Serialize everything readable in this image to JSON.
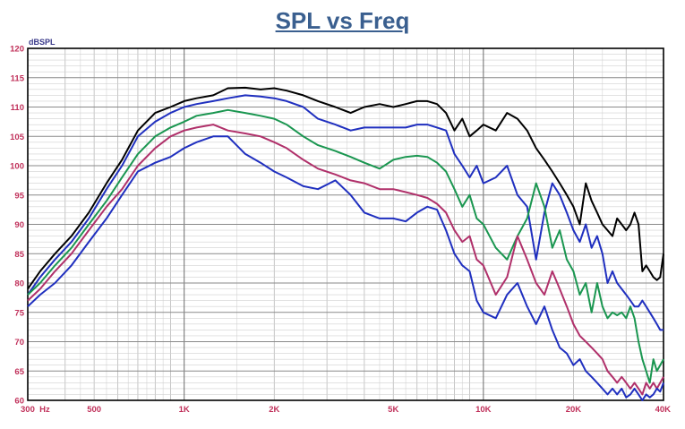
{
  "chart_data": {
    "type": "line",
    "title": "SPL vs Freq",
    "ylabel": "dBSPL",
    "xlabel": "",
    "xscale": "log",
    "xlim": [
      300,
      40000
    ],
    "ylim": [
      60,
      120
    ],
    "grid": true,
    "legend": "none",
    "yticks": [
      60,
      65,
      70,
      75,
      80,
      85,
      90,
      95,
      100,
      105,
      110,
      115,
      120
    ],
    "xticks": [
      {
        "value": 300,
        "label": "300  Hz"
      },
      {
        "value": 500,
        "label": "500"
      },
      {
        "value": 1000,
        "label": "1K"
      },
      {
        "value": 2000,
        "label": "2K"
      },
      {
        "value": 5000,
        "label": "5K"
      },
      {
        "value": 10000,
        "label": "10K"
      },
      {
        "value": 20000,
        "label": "20K"
      },
      {
        "value": 40000,
        "label": "40K"
      }
    ],
    "series": [
      {
        "color": "#000000",
        "x": [
          300,
          330,
          370,
          420,
          480,
          550,
          620,
          700,
          800,
          900,
          1000,
          1100,
          1250,
          1400,
          1600,
          1800,
          2000,
          2200,
          2500,
          2800,
          3200,
          3600,
          4000,
          4500,
          5000,
          5500,
          6000,
          6500,
          7000,
          7500,
          8000,
          8500,
          9000,
          9500,
          10000,
          11000,
          12000,
          13000,
          14000,
          15000,
          16000,
          17000,
          18000,
          19000,
          20000,
          21000,
          22000,
          23000,
          24000,
          25000,
          26000,
          27000,
          28000,
          29000,
          30000,
          31000,
          32000,
          33000,
          34000,
          35000,
          36000,
          37000,
          38000,
          39000,
          40000
        ],
        "y": [
          79,
          82,
          85,
          88,
          92,
          97,
          101,
          106,
          109,
          110,
          111,
          111.5,
          112,
          113.2,
          113.3,
          113,
          113.2,
          112.8,
          112,
          111,
          110,
          109,
          110,
          110.5,
          110,
          110.5,
          111,
          111,
          110.5,
          109,
          106,
          108,
          105,
          106,
          107,
          106,
          109,
          108,
          106,
          103,
          101,
          99,
          97,
          95,
          93,
          90,
          97,
          94,
          92,
          90,
          89,
          88,
          91,
          90,
          89,
          90,
          92,
          90,
          82,
          83,
          82,
          81,
          80.5,
          81,
          85
        ]
      },
      {
        "color": "#1f2fbf",
        "x": [
          300,
          330,
          370,
          420,
          480,
          550,
          620,
          700,
          800,
          900,
          1000,
          1100,
          1250,
          1400,
          1600,
          1800,
          2000,
          2200,
          2500,
          2800,
          3200,
          3600,
          4000,
          4500,
          5000,
          5500,
          6000,
          6500,
          7000,
          7500,
          8000,
          8500,
          9000,
          9500,
          10000,
          11000,
          12000,
          13000,
          14000,
          15000,
          16000,
          17000,
          18000,
          19000,
          20000,
          21000,
          22000,
          23000,
          24000,
          25000,
          26000,
          27000,
          28000,
          29000,
          30000,
          31000,
          32000,
          33000,
          34000,
          35000,
          36000,
          37000,
          38000,
          39000,
          40000
        ],
        "y": [
          78,
          81,
          84,
          87,
          91,
          96,
          100,
          105,
          107.5,
          109,
          110,
          110.5,
          111,
          111.5,
          112,
          111.8,
          111.5,
          111,
          110,
          108,
          107,
          106,
          106.5,
          106.5,
          106.5,
          106.5,
          107,
          107,
          106.5,
          106,
          102,
          100,
          98,
          100,
          97,
          98,
          100,
          95,
          93,
          84,
          92,
          97,
          95,
          92,
          89,
          87,
          90,
          86,
          88,
          85,
          80,
          82,
          80,
          79,
          78,
          77,
          76,
          76,
          77,
          76,
          75,
          74,
          73,
          72,
          72
        ]
      },
      {
        "color": "#1a9650",
        "x": [
          300,
          330,
          370,
          420,
          480,
          550,
          620,
          700,
          800,
          900,
          1000,
          1100,
          1250,
          1400,
          1600,
          1800,
          2000,
          2200,
          2500,
          2800,
          3200,
          3600,
          4000,
          4500,
          5000,
          5500,
          6000,
          6500,
          7000,
          7500,
          8000,
          8500,
          9000,
          9500,
          10000,
          11000,
          12000,
          13000,
          14000,
          15000,
          16000,
          17000,
          18000,
          19000,
          20000,
          21000,
          22000,
          23000,
          24000,
          25000,
          26000,
          27000,
          28000,
          29000,
          30000,
          31000,
          32000,
          33000,
          34000,
          35000,
          36000,
          37000,
          38000,
          39000,
          40000
        ],
        "y": [
          78,
          80,
          83,
          86,
          90,
          94,
          98,
          102,
          105,
          106.5,
          107.5,
          108.5,
          109,
          109.5,
          109,
          108.5,
          108,
          107,
          105,
          103.5,
          102.5,
          101.5,
          100.5,
          99.5,
          101,
          101.5,
          101.7,
          101.5,
          100.5,
          99,
          96,
          93,
          95,
          91,
          90,
          86,
          84,
          88,
          91,
          97,
          93,
          86,
          89,
          84,
          82,
          78,
          80,
          75,
          80,
          76,
          74,
          75,
          74.5,
          75,
          74,
          76,
          74,
          70,
          67,
          65,
          63,
          67,
          65,
          66,
          67
        ]
      },
      {
        "color": "#b0306a",
        "x": [
          300,
          330,
          370,
          420,
          480,
          550,
          620,
          700,
          800,
          900,
          1000,
          1100,
          1250,
          1400,
          1600,
          1800,
          2000,
          2200,
          2500,
          2800,
          3200,
          3600,
          4000,
          4500,
          5000,
          5500,
          6000,
          6500,
          7000,
          7500,
          8000,
          8500,
          9000,
          9500,
          10000,
          11000,
          12000,
          13000,
          14000,
          15000,
          16000,
          17000,
          18000,
          19000,
          20000,
          21000,
          22000,
          23000,
          24000,
          25000,
          26000,
          27000,
          28000,
          29000,
          30000,
          31000,
          32000,
          33000,
          34000,
          35000,
          36000,
          37000,
          38000,
          39000,
          40000
        ],
        "y": [
          77,
          79,
          82,
          85,
          89,
          93,
          96,
          100,
          103,
          105,
          106,
          106.5,
          107,
          106,
          105.5,
          105,
          104,
          103,
          101,
          99.5,
          98.5,
          97.5,
          97,
          96,
          96,
          95.5,
          95,
          94.5,
          93.5,
          92,
          89,
          87,
          88,
          84,
          83,
          78,
          81,
          88,
          84,
          80,
          78,
          82,
          79,
          76,
          73,
          71,
          70,
          69,
          68,
          67,
          65,
          64,
          63,
          64,
          63,
          62,
          63,
          62,
          61,
          63,
          62,
          63,
          62,
          63,
          64
        ]
      },
      {
        "color": "#1f2fbf",
        "x": [
          300,
          330,
          370,
          420,
          480,
          550,
          620,
          700,
          800,
          900,
          1000,
          1100,
          1250,
          1400,
          1600,
          1800,
          2000,
          2200,
          2500,
          2800,
          3200,
          3600,
          4000,
          4500,
          5000,
          5500,
          6000,
          6500,
          7000,
          7500,
          8000,
          8500,
          9000,
          9500,
          10000,
          11000,
          12000,
          13000,
          14000,
          15000,
          16000,
          17000,
          18000,
          19000,
          20000,
          21000,
          22000,
          23000,
          24000,
          25000,
          26000,
          27000,
          28000,
          29000,
          30000,
          31000,
          32000,
          33000,
          34000,
          35000,
          36000,
          37000,
          38000,
          39000,
          40000
        ],
        "y": [
          76,
          78,
          80,
          83,
          87,
          91,
          95,
          99,
          100.5,
          101.5,
          103,
          104,
          105,
          105,
          102,
          100.5,
          99,
          98,
          96.5,
          96,
          97.5,
          95,
          92,
          91,
          91,
          90.5,
          92,
          93,
          92.5,
          89,
          85,
          83,
          82,
          77,
          75,
          74,
          78,
          80,
          76,
          73,
          76,
          72,
          69,
          68,
          66,
          67,
          65,
          64,
          63,
          62,
          61,
          62,
          61,
          62,
          60.5,
          61,
          62,
          61,
          60,
          61,
          60.5,
          61,
          62,
          61.5,
          63
        ]
      }
    ]
  }
}
